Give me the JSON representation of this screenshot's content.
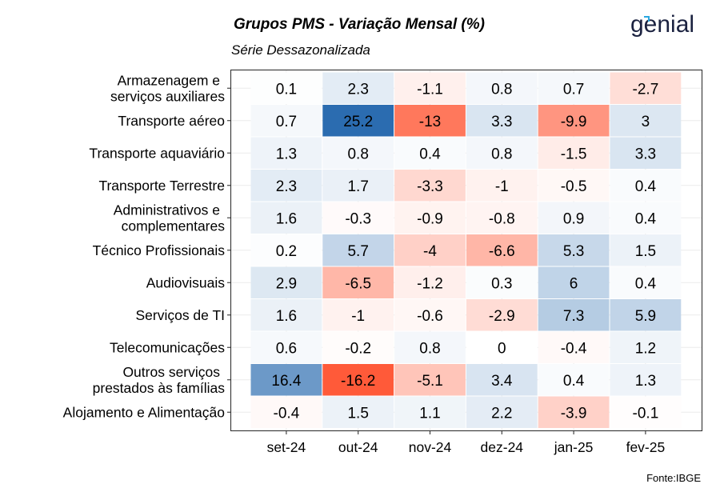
{
  "header": {
    "title": "Grupos PMS - Variação Mensal (%)",
    "subtitle": "Série Dessazonalizada",
    "logo_text": "genial"
  },
  "caption": "Fonte:IBGE",
  "colors": {
    "low": "#ff4a25",
    "mid": "#ffffff",
    "high": "#2b6cb0",
    "grid": "#ebebeb",
    "axis": "#333333"
  },
  "chart_data": {
    "type": "heatmap",
    "title": "Grupos PMS - Variação Mensal (%)",
    "subtitle": "Série Dessazonalizada",
    "xlabel": "",
    "ylabel": "",
    "legend": "none",
    "grid": true,
    "x": [
      "set-24",
      "out-24",
      "nov-24",
      "dez-24",
      "jan-25",
      "fev-25"
    ],
    "y": [
      [
        "Armazenagem e",
        "serviços auxiliares"
      ],
      [
        "Transporte aéreo"
      ],
      [
        "Transporte aquaviário"
      ],
      [
        "Transporte Terrestre"
      ],
      [
        "Administrativos e",
        "complementares"
      ],
      [
        "Técnico Profissionais"
      ],
      [
        "Audiovisuais"
      ],
      [
        "Serviços de TI"
      ],
      [
        "Telecomunicações"
      ],
      [
        "Outros serviços",
        "prestados às famílias"
      ],
      [
        "Alojamento e Alimentação"
      ]
    ],
    "values": [
      [
        0.1,
        2.3,
        -1.1,
        0.8,
        0.7,
        -2.7
      ],
      [
        0.7,
        25.2,
        -13,
        3.3,
        -9.9,
        3
      ],
      [
        1.3,
        0.8,
        0.4,
        0.8,
        -1.5,
        3.3
      ],
      [
        2.3,
        1.7,
        -3.3,
        -1,
        -0.5,
        0.4
      ],
      [
        1.6,
        -0.3,
        -0.9,
        -0.8,
        0.9,
        0.4
      ],
      [
        0.2,
        5.7,
        -4,
        -6.6,
        5.3,
        1.5
      ],
      [
        2.9,
        -6.5,
        -1.2,
        0.3,
        6,
        0.4
      ],
      [
        1.6,
        -1,
        -0.6,
        -2.9,
        7.3,
        5.9
      ],
      [
        0.6,
        -0.2,
        0.8,
        0,
        -0.4,
        1.2
      ],
      [
        16.4,
        -16.2,
        -5.1,
        3.4,
        0.4,
        1.3
      ],
      [
        -0.4,
        1.5,
        1.1,
        2.2,
        -3.9,
        -0.1
      ]
    ],
    "color_scale": {
      "low_limit": -18,
      "mid": 0,
      "high_limit": 25.2
    }
  }
}
